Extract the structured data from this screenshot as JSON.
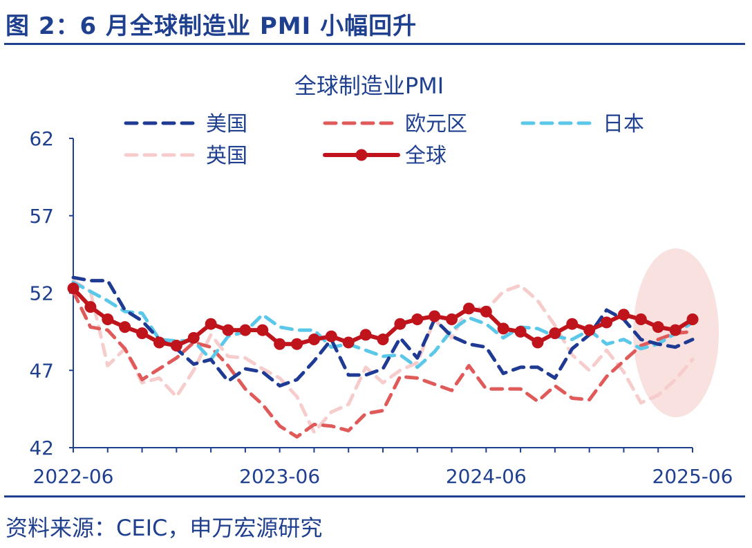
{
  "figure_title": "图 2：6 月全球制造业 PMI 小幅回升",
  "source_note": "资料来源：CEIC，申万宏源研究",
  "colors": {
    "accent": "#1f3f8f",
    "us": "#1f3a93",
    "eurozone": "#e05a5a",
    "japan": "#5bc8ea",
    "uk": "#f6cccc",
    "global": "#c0141c",
    "highlight": "#f2c9c4"
  },
  "chart_data": {
    "type": "line",
    "title": "全球制造业PMI",
    "xlabel": "",
    "ylabel": "",
    "ylim": [
      42,
      62
    ],
    "yticks": [
      42,
      47,
      52,
      57,
      62
    ],
    "xticks": [
      "2022-06",
      "2023-06",
      "2024-06",
      "2025-06"
    ],
    "x": [
      "2022-06",
      "2022-07",
      "2022-08",
      "2022-09",
      "2022-10",
      "2022-11",
      "2022-12",
      "2023-01",
      "2023-02",
      "2023-03",
      "2023-04",
      "2023-05",
      "2023-06",
      "2023-07",
      "2023-08",
      "2023-09",
      "2023-10",
      "2023-11",
      "2023-12",
      "2024-01",
      "2024-02",
      "2024-03",
      "2024-04",
      "2024-05",
      "2024-06",
      "2024-07",
      "2024-08",
      "2024-09",
      "2024-10",
      "2024-11",
      "2024-12",
      "2025-01",
      "2025-02",
      "2025-03",
      "2025-04",
      "2025-05",
      "2025-06"
    ],
    "legend_position": "top",
    "series": [
      {
        "name": "美国",
        "style": "dashed",
        "values": [
          53.0,
          52.8,
          52.8,
          50.9,
          50.2,
          49.0,
          48.4,
          47.4,
          47.7,
          46.3,
          47.1,
          46.9,
          46.0,
          46.4,
          47.6,
          49.0,
          46.7,
          46.7,
          47.1,
          49.1,
          47.8,
          50.3,
          49.2,
          48.7,
          48.5,
          46.8,
          47.2,
          47.2,
          46.5,
          48.4,
          49.3,
          50.9,
          50.3,
          49.0,
          48.7,
          48.5,
          49.0
        ]
      },
      {
        "name": "欧元区",
        "style": "dashed",
        "values": [
          52.1,
          49.8,
          49.6,
          48.4,
          46.4,
          47.1,
          47.8,
          48.8,
          48.5,
          47.3,
          45.8,
          44.8,
          43.4,
          42.7,
          43.5,
          43.4,
          43.1,
          44.2,
          44.4,
          46.6,
          46.5,
          46.1,
          45.7,
          47.3,
          45.8,
          45.8,
          45.8,
          45.0,
          46.0,
          45.2,
          45.1,
          46.6,
          47.6,
          48.6,
          49.0,
          49.4,
          49.5
        ]
      },
      {
        "name": "日本",
        "style": "dashed",
        "values": [
          52.7,
          52.1,
          51.5,
          50.8,
          50.7,
          49.0,
          48.9,
          48.9,
          47.7,
          49.2,
          49.5,
          50.6,
          49.8,
          49.6,
          49.6,
          48.5,
          48.7,
          48.3,
          47.9,
          48.0,
          47.2,
          48.2,
          49.6,
          50.4,
          50.0,
          49.1,
          49.8,
          49.7,
          49.2,
          49.0,
          49.6,
          48.7,
          49.0,
          48.4,
          48.7,
          49.4,
          50.1
        ]
      },
      {
        "name": "英国",
        "style": "dashed",
        "values": [
          52.8,
          52.1,
          47.3,
          48.4,
          46.2,
          46.5,
          45.3,
          47.0,
          49.3,
          47.9,
          47.8,
          47.1,
          46.5,
          45.3,
          43.0,
          44.3,
          44.8,
          47.2,
          46.2,
          47.0,
          47.5,
          50.3,
          49.1,
          51.2,
          50.9,
          52.1,
          52.5,
          51.5,
          49.9,
          48.0,
          47.0,
          48.3,
          46.9,
          44.9,
          45.4,
          46.4,
          47.7
        ]
      },
      {
        "name": "全球",
        "style": "solid-marker",
        "values": [
          52.3,
          51.1,
          50.3,
          49.8,
          49.4,
          48.8,
          48.6,
          49.1,
          50.0,
          49.6,
          49.6,
          49.6,
          48.7,
          48.7,
          49.0,
          49.2,
          48.8,
          49.3,
          49.0,
          50.0,
          50.3,
          50.5,
          50.3,
          51.0,
          50.8,
          49.7,
          49.5,
          48.8,
          49.4,
          50.0,
          49.6,
          50.1,
          50.6,
          50.3,
          49.8,
          49.6,
          50.3
        ]
      }
    ]
  }
}
